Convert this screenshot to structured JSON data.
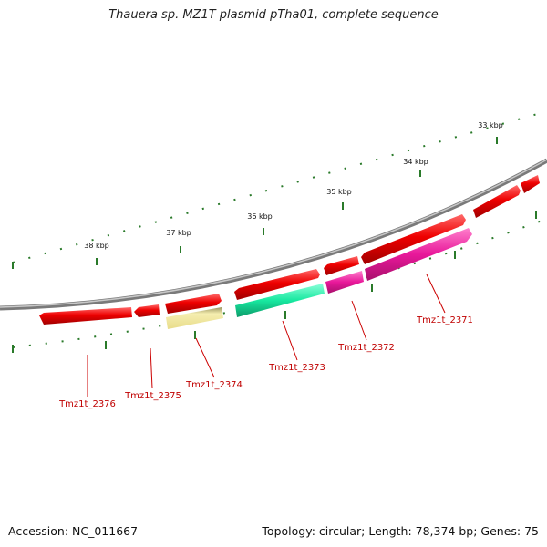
{
  "title": "Thauera sp. MZ1T plasmid pTha01, complete sequence",
  "footer": {
    "accession": "Accession: NC_011667",
    "summary": "Topology: circular; Length: 78,374 bp; Genes: 75"
  },
  "ticks": [
    "33 kbp",
    "34 kbp",
    "35 kbp",
    "36 kbp",
    "37 kbp",
    "38 kbp"
  ],
  "genes": [
    "Tmz1t_2371",
    "Tmz1t_2372",
    "Tmz1t_2373",
    "Tmz1t_2374",
    "Tmz1t_2375",
    "Tmz1t_2376"
  ],
  "colors": {
    "backbone": "#8a8a8a",
    "forward_gene": "#ee0000",
    "reverse_pink": "#e8189a",
    "reverse_green": "#18e8a0",
    "reverse_yellow": "#f0e6a0",
    "tick": "#2a7a2a",
    "label": "#c00000"
  }
}
